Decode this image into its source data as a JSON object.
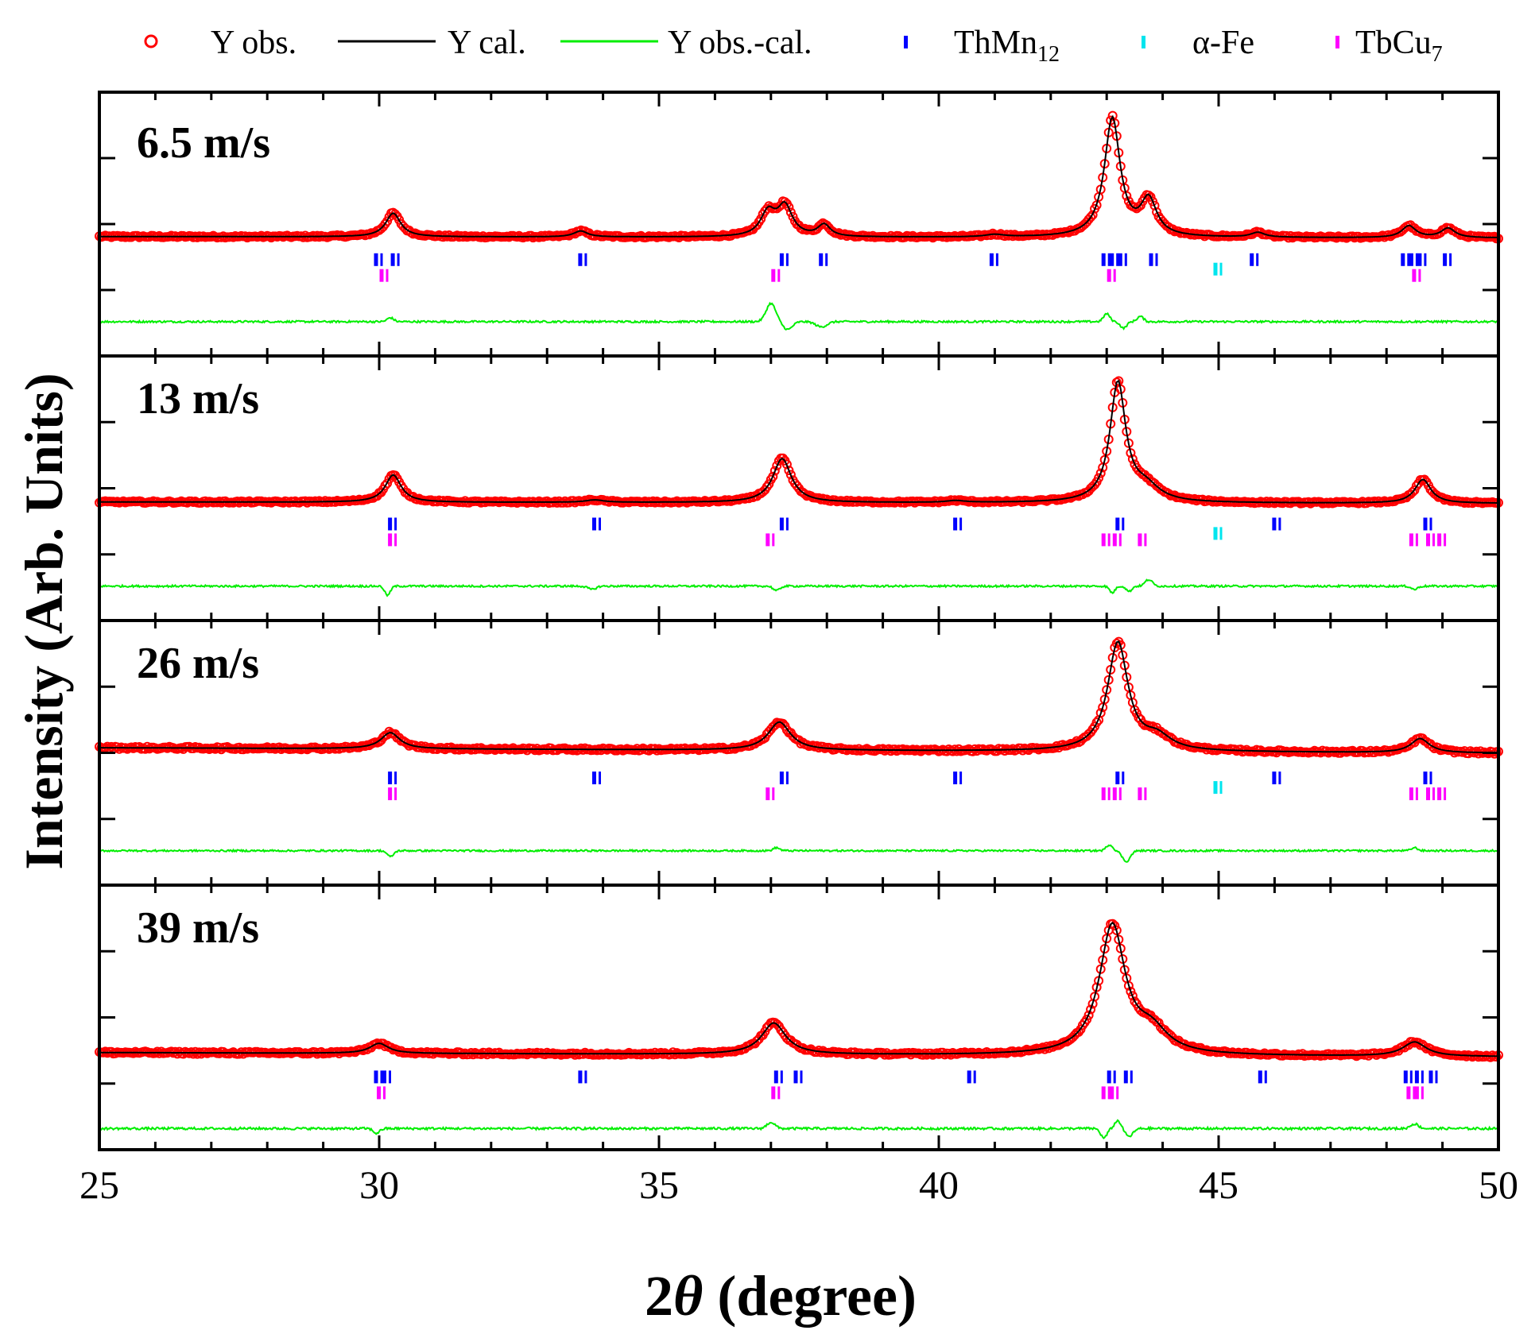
{
  "legend": {
    "obs": "Y obs.",
    "cal": "Y cal.",
    "diff": "Y obs.-cal.",
    "phase1_base": "ThMn",
    "phase1_sub": "12",
    "phase2": "α-Fe",
    "phase3_base": "TbCu",
    "phase3_sub": "7"
  },
  "colors": {
    "obs": "#ff0000",
    "cal": "#000000",
    "diff": "#00ee00",
    "thmn12": "#0000ff",
    "afe": "#00e5ee",
    "tbcu7": "#ff00ff"
  },
  "chart_data": {
    "type": "line",
    "xlabel_prefix": "2",
    "xlabel_symbol": "θ",
    "xlabel_suffix": " (degree)",
    "ylabel": "Intensity (Arb. Units)",
    "xlim": [
      25,
      50
    ],
    "xticks": [
      "25",
      "30",
      "35",
      "40",
      "45",
      "50"
    ],
    "panels": [
      {
        "label": "6.5 m/s",
        "baseline": 0.05,
        "slope": -0.012,
        "noise": 0.018,
        "peaks": [
          {
            "pos": 30.25,
            "h": 0.2,
            "w": 0.16
          },
          {
            "pos": 33.6,
            "h": 0.05,
            "w": 0.15
          },
          {
            "pos": 36.95,
            "h": 0.2,
            "w": 0.16
          },
          {
            "pos": 37.25,
            "h": 0.25,
            "w": 0.16
          },
          {
            "pos": 37.95,
            "h": 0.1,
            "w": 0.13
          },
          {
            "pos": 41.0,
            "h": 0.02,
            "w": 0.2
          },
          {
            "pos": 43.1,
            "h": 1.0,
            "w": 0.17
          },
          {
            "pos": 43.75,
            "h": 0.3,
            "w": 0.17
          },
          {
            "pos": 45.7,
            "h": 0.04,
            "w": 0.15
          },
          {
            "pos": 48.4,
            "h": 0.1,
            "w": 0.15
          },
          {
            "pos": 49.1,
            "h": 0.08,
            "w": 0.15
          }
        ],
        "diff_features": [
          {
            "pos": 37.0,
            "a": 0.28,
            "w": 0.12
          },
          {
            "pos": 37.3,
            "a": -0.12,
            "w": 0.12
          },
          {
            "pos": 37.9,
            "a": -0.08,
            "w": 0.14
          },
          {
            "pos": 43.0,
            "a": 0.12,
            "w": 0.08
          },
          {
            "pos": 43.3,
            "a": -0.1,
            "w": 0.08
          },
          {
            "pos": 43.6,
            "a": 0.08,
            "w": 0.08
          },
          {
            "pos": 30.2,
            "a": 0.06,
            "w": 0.08
          }
        ],
        "thmn12": [
          29.95,
          30.25,
          33.6,
          37.2,
          37.9,
          40.95,
          42.95,
          43.1,
          43.25,
          43.8,
          45.6,
          48.3,
          48.45,
          48.6,
          49.05
        ],
        "afe": [
          44.95
        ],
        "tbcu7": [
          30.05,
          37.05,
          43.05,
          48.5
        ]
      },
      {
        "label": "13 m/s",
        "baseline": 0.04,
        "slope": -0.012,
        "noise": 0.016,
        "peaks": [
          {
            "pos": 30.25,
            "h": 0.23,
            "w": 0.17
          },
          {
            "pos": 33.85,
            "h": 0.02,
            "w": 0.2
          },
          {
            "pos": 37.2,
            "h": 0.37,
            "w": 0.2
          },
          {
            "pos": 40.3,
            "h": 0.015,
            "w": 0.2
          },
          {
            "pos": 43.2,
            "h": 1.0,
            "w": 0.17
          },
          {
            "pos": 43.7,
            "h": 0.12,
            "w": 0.3
          },
          {
            "pos": 48.65,
            "h": 0.2,
            "w": 0.17
          }
        ],
        "diff_features": [
          {
            "pos": 30.15,
            "a": -0.14,
            "w": 0.07
          },
          {
            "pos": 33.8,
            "a": -0.05,
            "w": 0.1
          },
          {
            "pos": 37.1,
            "a": -0.07,
            "w": 0.08
          },
          {
            "pos": 43.1,
            "a": -0.1,
            "w": 0.07
          },
          {
            "pos": 43.4,
            "a": -0.08,
            "w": 0.07
          },
          {
            "pos": 43.75,
            "a": 0.1,
            "w": 0.09
          },
          {
            "pos": 48.5,
            "a": -0.05,
            "w": 0.08
          }
        ],
        "thmn12": [
          30.2,
          33.85,
          37.2,
          40.3,
          43.2,
          46.0,
          48.7
        ],
        "afe": [
          44.95
        ],
        "tbcu7": [
          30.2,
          36.95,
          42.95,
          43.15,
          43.6,
          48.45,
          48.75,
          48.95
        ]
      },
      {
        "label": "26 m/s",
        "baseline": 0.12,
        "slope": -0.05,
        "noise": 0.024,
        "peaks": [
          {
            "pos": 30.2,
            "h": 0.15,
            "w": 0.2
          },
          {
            "pos": 37.15,
            "h": 0.26,
            "w": 0.24
          },
          {
            "pos": 43.2,
            "h": 1.0,
            "w": 0.22
          },
          {
            "pos": 43.9,
            "h": 0.12,
            "w": 0.3
          },
          {
            "pos": 48.6,
            "h": 0.13,
            "w": 0.2
          }
        ],
        "diff_features": [
          {
            "pos": 30.2,
            "a": -0.1,
            "w": 0.08
          },
          {
            "pos": 37.1,
            "a": 0.05,
            "w": 0.08
          },
          {
            "pos": 43.05,
            "a": 0.1,
            "w": 0.08
          },
          {
            "pos": 43.35,
            "a": -0.18,
            "w": 0.1
          },
          {
            "pos": 48.5,
            "a": 0.05,
            "w": 0.08
          }
        ],
        "thmn12": [
          30.2,
          33.85,
          37.2,
          40.3,
          43.2,
          46.0,
          48.7
        ],
        "afe": [
          44.95
        ],
        "tbcu7": [
          30.2,
          36.95,
          42.95,
          43.15,
          43.6,
          48.45,
          48.75,
          48.95
        ]
      },
      {
        "label": "39 m/s",
        "baseline": 0.05,
        "slope": -0.03,
        "noise": 0.018,
        "peaks": [
          {
            "pos": 30.0,
            "h": 0.07,
            "w": 0.2
          },
          {
            "pos": 37.05,
            "h": 0.22,
            "w": 0.26
          },
          {
            "pos": 43.1,
            "h": 0.9,
            "w": 0.28
          },
          {
            "pos": 43.8,
            "h": 0.15,
            "w": 0.35
          },
          {
            "pos": 48.5,
            "h": 0.1,
            "w": 0.25
          }
        ],
        "diff_features": [
          {
            "pos": 29.95,
            "a": -0.06,
            "w": 0.08
          },
          {
            "pos": 37.0,
            "a": 0.08,
            "w": 0.1
          },
          {
            "pos": 42.95,
            "a": -0.12,
            "w": 0.08
          },
          {
            "pos": 43.2,
            "a": 0.1,
            "w": 0.08
          },
          {
            "pos": 43.4,
            "a": -0.1,
            "w": 0.1
          },
          {
            "pos": 48.5,
            "a": 0.06,
            "w": 0.1
          }
        ],
        "thmn12": [
          29.95,
          30.1,
          33.6,
          37.1,
          37.45,
          40.55,
          43.05,
          43.35,
          45.75,
          48.35,
          48.55,
          48.8
        ],
        "afe": [],
        "tbcu7": [
          30.0,
          37.05,
          42.95,
          43.1,
          48.4,
          48.55
        ]
      }
    ]
  }
}
